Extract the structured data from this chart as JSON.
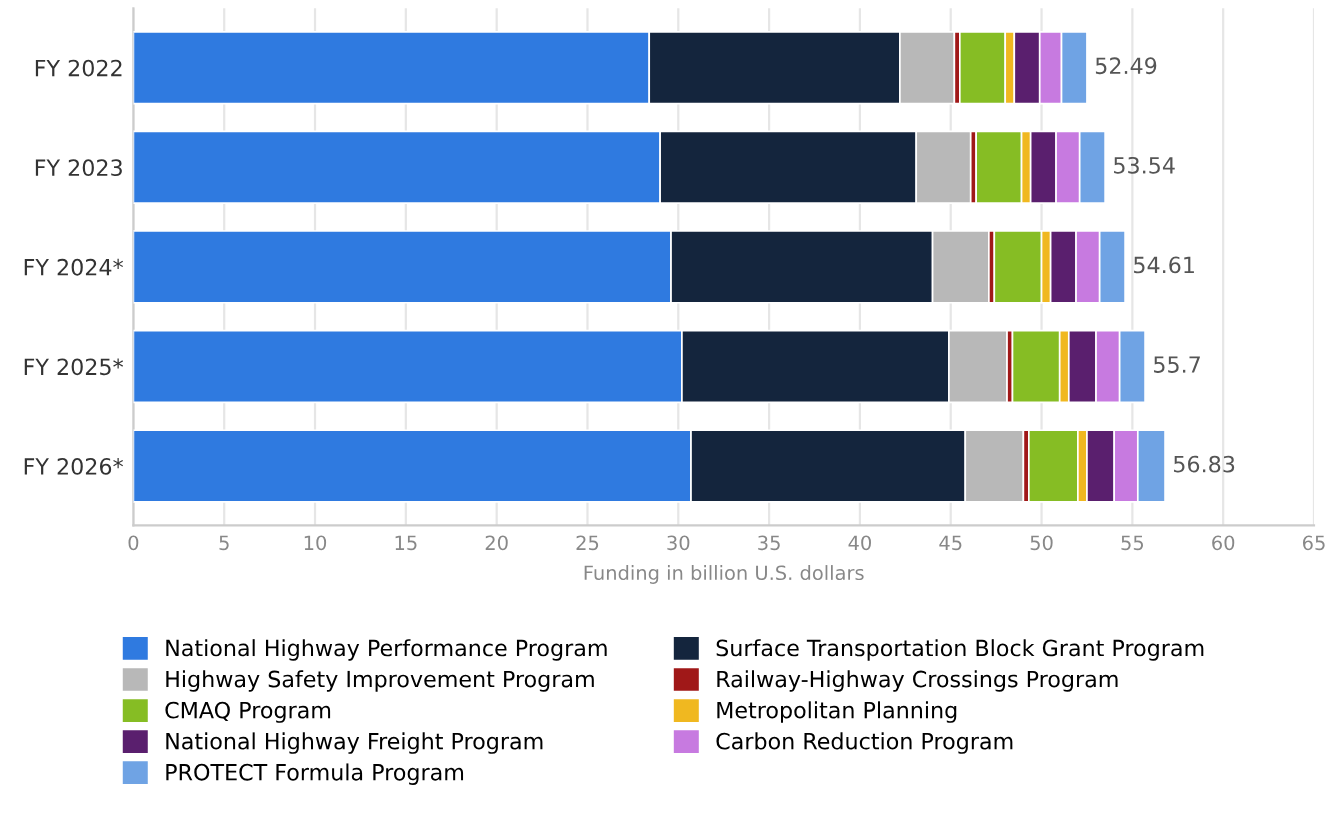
{
  "chart_data": {
    "type": "bar",
    "orientation": "horizontal",
    "stacked": true,
    "categories": [
      "FY 2022",
      "FY 2023",
      "FY 2024*",
      "FY 2025*",
      "FY 2026*"
    ],
    "xlabel": "Funding in billion U.S. dollars",
    "xlim": [
      0,
      65
    ],
    "xticks": [
      0,
      5,
      10,
      15,
      20,
      25,
      30,
      35,
      40,
      45,
      50,
      55,
      60,
      65
    ],
    "grid": "x",
    "legend": "bottom",
    "totals": [
      "52.49",
      "53.54",
      "54.61",
      "55.7",
      "56.83"
    ],
    "series": [
      {
        "name": "National Highway Performance Program",
        "color": "#2f7ae0",
        "values": [
          28.4,
          29.0,
          29.6,
          30.2,
          30.7
        ]
      },
      {
        "name": "Surface Transportation Block Grant Program",
        "color": "#14253d",
        "values": [
          13.8,
          14.1,
          14.4,
          14.7,
          15.1
        ]
      },
      {
        "name": "Highway Safety Improvement Program",
        "color": "#b8b8b8",
        "values": [
          3.0,
          3.0,
          3.1,
          3.2,
          3.2
        ]
      },
      {
        "name": "Railway-Highway Crossings Program",
        "color": "#a01818",
        "values": [
          0.3,
          0.3,
          0.3,
          0.3,
          0.3
        ]
      },
      {
        "name": "CMAQ Program",
        "color": "#86bd24",
        "values": [
          2.5,
          2.5,
          2.6,
          2.6,
          2.7
        ]
      },
      {
        "name": "Metropolitan Planning",
        "color": "#f0b820",
        "values": [
          0.5,
          0.5,
          0.5,
          0.5,
          0.5
        ]
      },
      {
        "name": "National Highway Freight Program",
        "color": "#5a1f6e",
        "values": [
          1.4,
          1.4,
          1.4,
          1.5,
          1.5
        ]
      },
      {
        "name": "Carbon Reduction Program",
        "color": "#c77ae0",
        "values": [
          1.2,
          1.3,
          1.3,
          1.3,
          1.3
        ]
      },
      {
        "name": "PROTECT Formula Program",
        "color": "#6fa3e4",
        "values": [
          1.4,
          1.4,
          1.4,
          1.4,
          1.5
        ]
      }
    ]
  }
}
